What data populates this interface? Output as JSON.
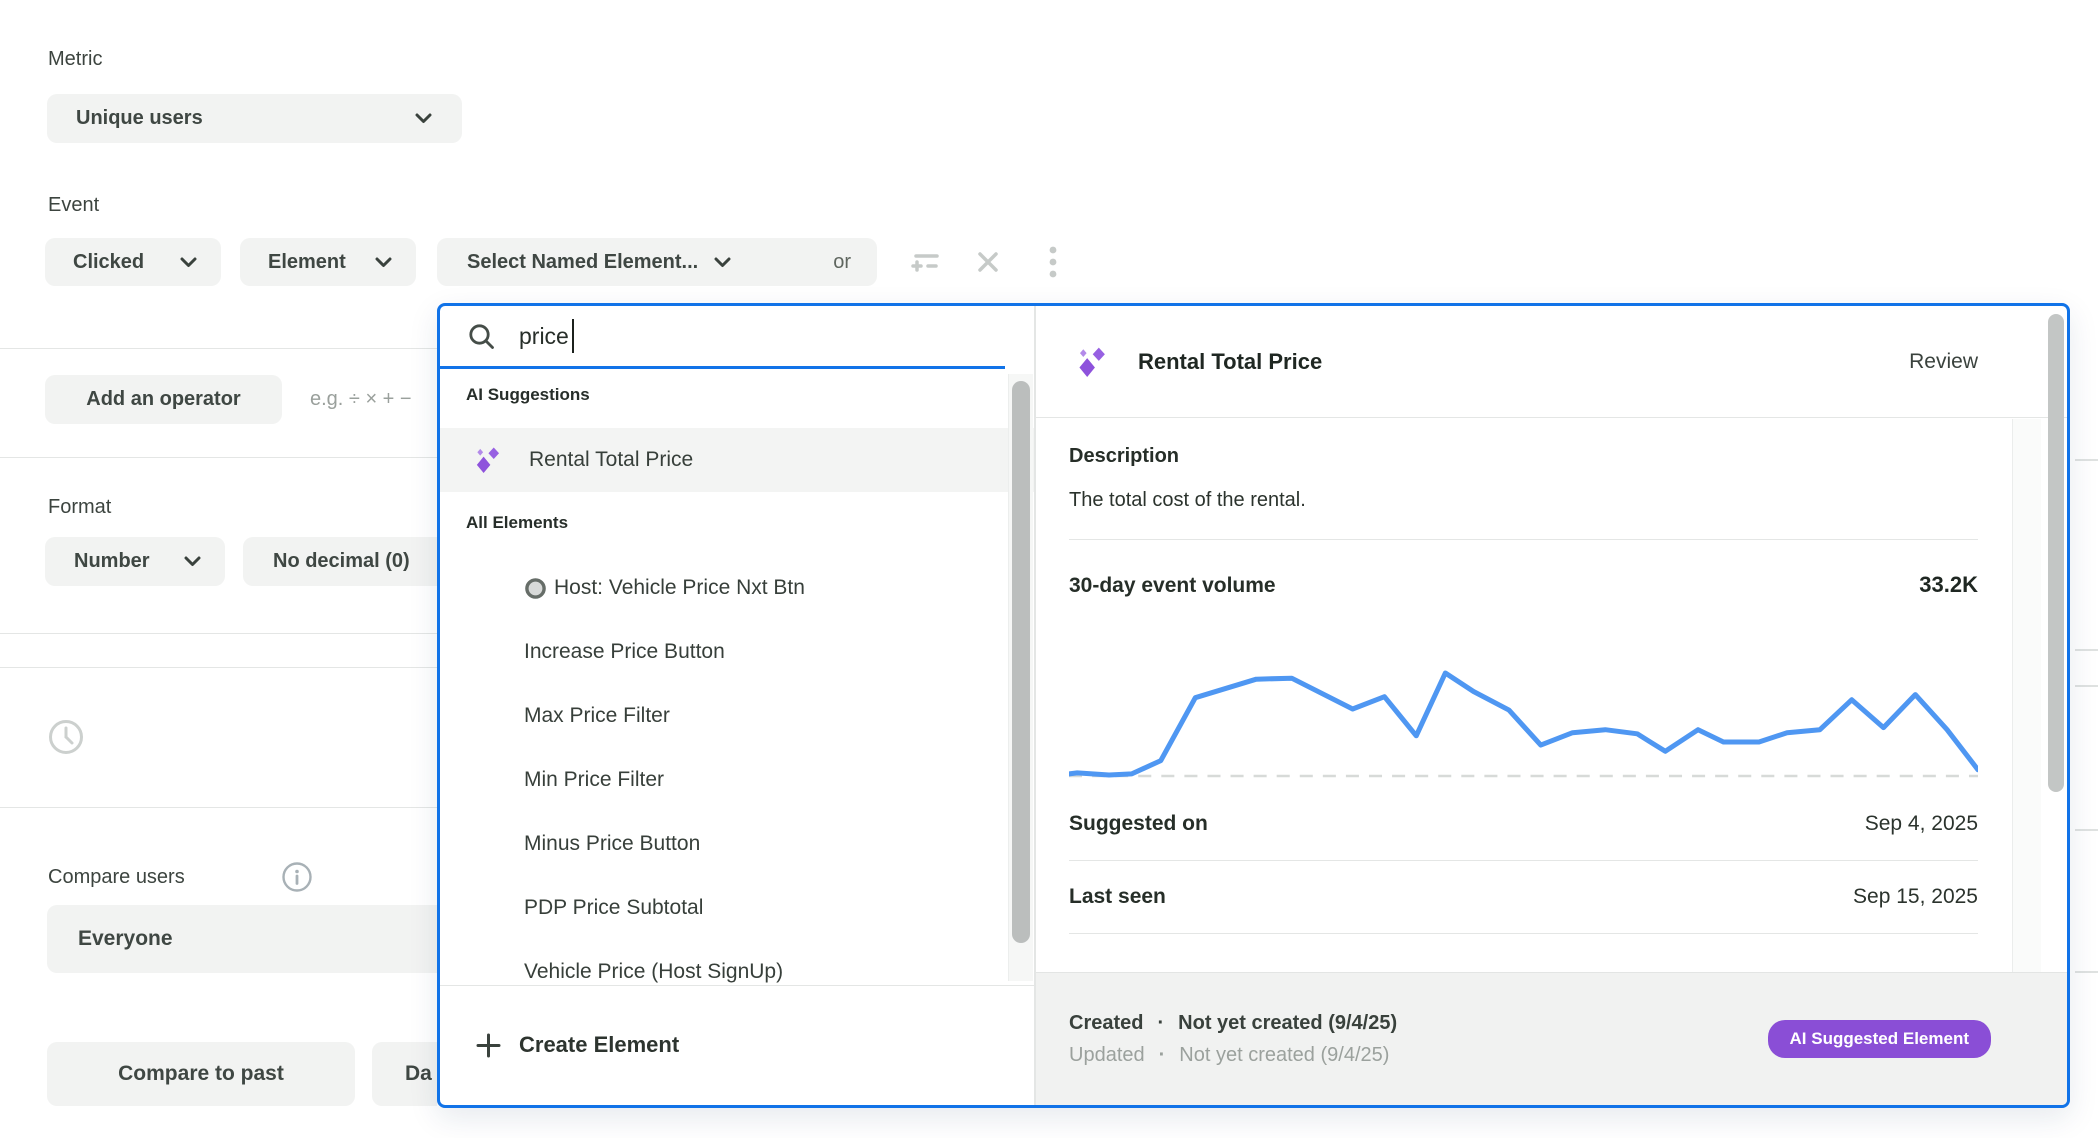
{
  "page": {
    "metric_label": "Metric",
    "metric_value": "Unique users",
    "event_label": "Event",
    "event_action": "Clicked",
    "event_target": "Element",
    "event_named": "Select Named Element...",
    "event_or": "or",
    "operator_button": "Add an operator",
    "operator_hint": "e.g. ÷ × + −",
    "format_label": "Format",
    "format_type": "Number",
    "format_decimal": "No decimal (0)",
    "compare_users_label": "Compare users",
    "compare_users_value": "Everyone",
    "compare_past_button": "Compare to past",
    "date_button_fragment": "Da"
  },
  "dropdown": {
    "search_value": "price",
    "ai_suggestions_header": "AI Suggestions",
    "ai_suggestion": "Rental Total Price",
    "all_elements_header": "All Elements",
    "elements": [
      "Host: Vehicle Price Nxt Btn",
      "Increase Price Button",
      "Max Price Filter",
      "Min Price Filter",
      "Minus Price Button",
      "PDP Price Subtotal",
      "Vehicle Price (Host SignUp)"
    ],
    "create_element": "Create Element"
  },
  "detail": {
    "title": "Rental Total Price",
    "review_link": "Review",
    "description_label": "Description",
    "description": "The total cost of the rental.",
    "volume_label": "30-day event volume",
    "volume_value": "33.2K",
    "suggested_on_label": "Suggested on",
    "suggested_on_value": "Sep 4, 2025",
    "last_seen_label": "Last seen",
    "last_seen_value": "Sep 15, 2025",
    "created_label": "Created",
    "created_value": "Not yet created (9/4/25)",
    "updated_label": "Updated",
    "updated_value": "Not yet created (9/4/25)",
    "separator": "·",
    "badge": "AI Suggested Element"
  },
  "chart_data": {
    "type": "line",
    "title": "30-day event volume",
    "total_label": "33.2K",
    "x_axis": "last 30 days (no tick labels shown)",
    "y_axis": "relative event volume (no tick labels shown)",
    "baseline": "dashed",
    "grid": false,
    "legend": false,
    "line_color": "#4f97f2",
    "baseline_color": "#d7dad8",
    "x": [
      0.0,
      0.009,
      0.044,
      0.069,
      0.101,
      0.139,
      0.206,
      0.245,
      0.312,
      0.347,
      0.382,
      0.414,
      0.445,
      0.484,
      0.519,
      0.554,
      0.59,
      0.625,
      0.656,
      0.692,
      0.72,
      0.759,
      0.79,
      0.826,
      0.861,
      0.896,
      0.931,
      0.966,
      1.0
    ],
    "values": [
      0.02,
      0.03,
      0.01,
      0.02,
      0.15,
      0.76,
      0.94,
      0.95,
      0.65,
      0.77,
      0.39,
      1.0,
      0.82,
      0.64,
      0.3,
      0.42,
      0.45,
      0.41,
      0.24,
      0.45,
      0.33,
      0.33,
      0.42,
      0.45,
      0.74,
      0.47,
      0.79,
      0.45,
      0.06
    ]
  },
  "colors": {
    "accent_blue": "#1173e8",
    "chart_blue": "#4f97f2",
    "ai_purple": "#8e52dc",
    "badge_purple": "#8a4ed6",
    "pill_gray": "#f2f3f2",
    "highlight_gray": "#f3f4f3"
  }
}
